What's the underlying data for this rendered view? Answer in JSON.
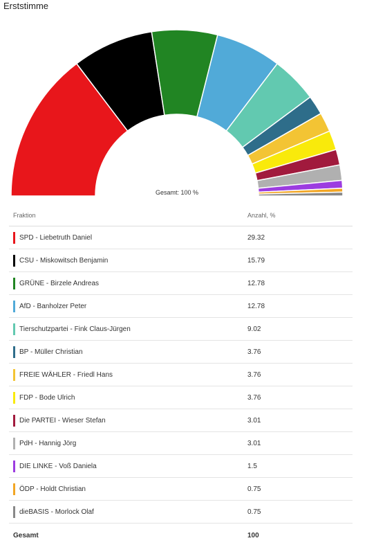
{
  "title": "Erststimme",
  "chart_data": {
    "type": "pie",
    "variant": "semicircle-donut",
    "center_label": "Gesamt: 100 %",
    "slices": [
      {
        "name": "SPD - Liebetruth Daniel",
        "value": 29.32,
        "color": "#e8161b"
      },
      {
        "name": "CSU - Miskowitsch Benjamin",
        "value": 15.79,
        "color": "#000000"
      },
      {
        "name": "GRÜNE - Birzele Andreas",
        "value": 12.78,
        "color": "#218523"
      },
      {
        "name": "AfD - Banholzer Peter",
        "value": 12.78,
        "color": "#51aad8"
      },
      {
        "name": "Tierschutzpartei - Fink Claus-Jürgen",
        "value": 9.02,
        "color": "#62c9b0"
      },
      {
        "name": "BP - Müller Christian",
        "value": 3.76,
        "color": "#2e6d8a"
      },
      {
        "name": "FREIE WÄHLER - Friedl Hans",
        "value": 3.76,
        "color": "#f3c434"
      },
      {
        "name": "FDP - Bode Ulrich",
        "value": 3.76,
        "color": "#f9ea0b"
      },
      {
        "name": "Die PARTEI - Wieser Stefan",
        "value": 3.01,
        "color": "#a11a3d"
      },
      {
        "name": "PdH - Hannig Jörg",
        "value": 3.01,
        "color": "#b0b0b0"
      },
      {
        "name": "DIE LINKE - Voß Daniela",
        "value": 1.5,
        "color": "#9c3ce0"
      },
      {
        "name": "ÖDP - Holdt Christian",
        "value": 0.75,
        "color": "#f2a624"
      },
      {
        "name": "dieBASIS - Morlock Olaf",
        "value": 0.75,
        "color": "#888888"
      }
    ]
  },
  "table": {
    "header": {
      "party": "Fraktion",
      "value": "Anzahl, %"
    },
    "total": {
      "label": "Gesamt",
      "value": "100"
    }
  }
}
